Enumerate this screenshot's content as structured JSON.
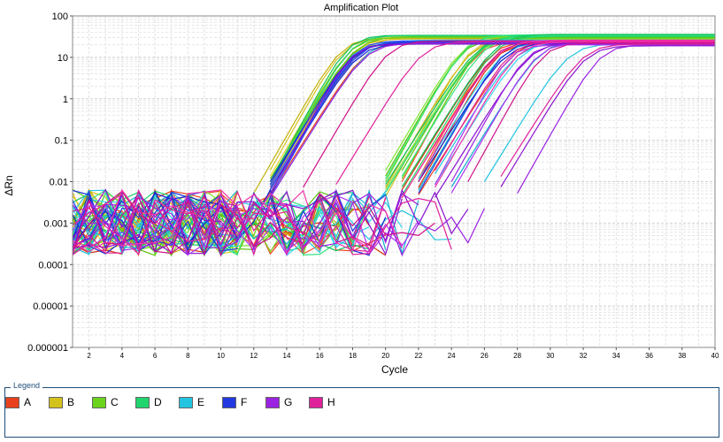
{
  "chart_data": {
    "type": "line",
    "title": "Amplification Plot",
    "xlabel": "Cycle",
    "ylabel": "ΔRn",
    "xlim": [
      1,
      40
    ],
    "ylim": [
      1e-06,
      100
    ],
    "yscale": "log",
    "grid": true,
    "x_ticks": [
      2,
      4,
      6,
      8,
      10,
      12,
      14,
      16,
      18,
      20,
      22,
      24,
      26,
      28,
      30,
      32,
      34,
      36,
      38,
      40
    ],
    "y_ticks": [
      {
        "value": 1e-06,
        "label": "0.000001"
      },
      {
        "value": 1e-05,
        "label": "0.00001"
      },
      {
        "value": 0.0001,
        "label": "0.0001"
      },
      {
        "value": 0.001,
        "label": "0.001"
      },
      {
        "value": 0.01,
        "label": "0.01"
      },
      {
        "value": 0.1,
        "label": "0.1"
      },
      {
        "value": 1,
        "label": "1"
      },
      {
        "value": 10,
        "label": "10"
      },
      {
        "value": 100,
        "label": "100"
      }
    ],
    "legend_placement": "bottom",
    "series": [
      {
        "name": "A",
        "color": "#e8401c",
        "ct": [
          13.2,
          13.5,
          21.0,
          21.3,
          21.6,
          21.9,
          22.2,
          22.5
        ],
        "plateau": [
          22,
          24,
          23,
          25,
          21,
          24,
          22,
          26
        ]
      },
      {
        "name": "B",
        "color": "#d4c21c",
        "ct": [
          12.4,
          12.6,
          12.8,
          13.0,
          13.1,
          13.2,
          20.2,
          20.5
        ],
        "plateau": [
          30,
          29,
          31,
          28,
          30,
          32,
          27,
          29
        ]
      },
      {
        "name": "C",
        "color": "#6ad41c",
        "ct": [
          12.9,
          13.0,
          19.6,
          19.8,
          20.0,
          20.3,
          20.6,
          20.9
        ],
        "plateau": [
          31,
          30,
          32,
          29,
          33,
          28,
          30,
          31
        ]
      },
      {
        "name": "D",
        "color": "#22d46e",
        "ct": [
          13.0,
          13.1,
          19.9,
          20.1,
          20.4,
          20.8,
          21.2,
          21.5
        ],
        "plateau": [
          34,
          33,
          35,
          32,
          34,
          33,
          36,
          32
        ]
      },
      {
        "name": "E",
        "color": "#22c4e0",
        "ct": [
          13.4,
          13.6,
          21.9,
          22.3,
          22.7,
          23.1,
          24.2,
          26.0
        ],
        "plateau": [
          24,
          26,
          23,
          25,
          22,
          24,
          25,
          21
        ]
      },
      {
        "name": "F",
        "color": "#2238e0",
        "ct": [
          13.0,
          13.1,
          13.2,
          13.3,
          13.4,
          13.5,
          22.0,
          22.4
        ],
        "plateau": [
          23,
          22,
          24,
          21,
          23,
          25,
          22,
          24
        ]
      },
      {
        "name": "G",
        "color": "#9a22e0",
        "ct": [
          13.4,
          13.6,
          23.1,
          23.6,
          24.0,
          24.4,
          27.2,
          28.4
        ],
        "plateau": [
          21,
          22,
          20,
          23,
          21,
          22,
          19,
          20
        ]
      },
      {
        "name": "H",
        "color": "#e0229a",
        "ct": [
          15.2,
          17.1,
          21.6,
          22.0,
          22.6,
          23.2,
          25.0,
          26.8
        ],
        "plateau": [
          25,
          24,
          26,
          23,
          25,
          24,
          22,
          21
        ]
      }
    ]
  },
  "legend": {
    "title": "Legend",
    "items": [
      {
        "label": "A",
        "color": "#e8401c"
      },
      {
        "label": "B",
        "color": "#d4c21c"
      },
      {
        "label": "C",
        "color": "#6ad41c"
      },
      {
        "label": "D",
        "color": "#22d46e"
      },
      {
        "label": "E",
        "color": "#22c4e0"
      },
      {
        "label": "F",
        "color": "#2238e0"
      },
      {
        "label": "G",
        "color": "#9a22e0"
      },
      {
        "label": "H",
        "color": "#e0229a"
      }
    ]
  }
}
